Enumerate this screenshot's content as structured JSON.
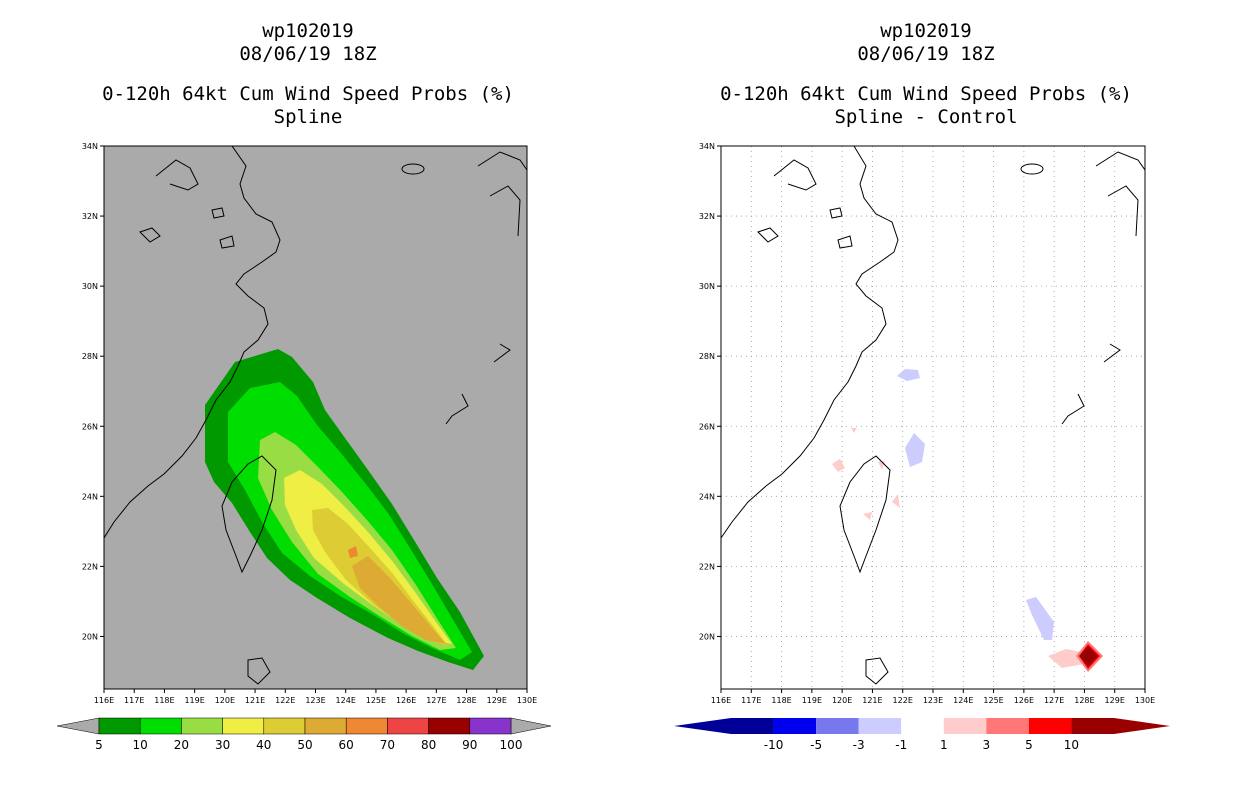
{
  "colors": {
    "land_bg": "#aaaaaa",
    "wind": [
      "#009900",
      "#00dd00",
      "#99dd44",
      "#eeee44",
      "#ddcc33",
      "#ddaa33",
      "#ee8833",
      "#ee4444",
      "#990000",
      "#8833cc"
    ],
    "diff": [
      "#000099",
      "#0000ee",
      "#7777ee",
      "#ccccff",
      "#ffffff",
      "#ffcccc",
      "#ff7777",
      "#ff0000",
      "#990000"
    ],
    "grid": "#999999"
  },
  "charts": [
    {
      "id": "left",
      "title_lines": [
        "wp102019",
        "08/06/19 18Z",
        "0-120h 64kt Cum Wind Speed Probs (%)",
        "Spline"
      ]
    },
    {
      "id": "right",
      "title_lines": [
        "wp102019",
        "08/06/19 18Z",
        "0-120h 64kt Cum Wind Speed Probs (%)",
        "Spline - Control"
      ]
    }
  ],
  "chart_data": [
    {
      "type": "heatmap",
      "title": "wp102019 08/06/19 18Z 0-120h 64kt Cum Wind Speed Probs (%) Spline",
      "x_ticks": [
        "116E",
        "117E",
        "118E",
        "119E",
        "120E",
        "121E",
        "122E",
        "123E",
        "124E",
        "125E",
        "126E",
        "127E",
        "128E",
        "129E",
        "130E"
      ],
      "y_ticks": [
        "20N",
        "22N",
        "24N",
        "26N",
        "28N",
        "30N",
        "32N",
        "34N"
      ],
      "xlim": [
        116,
        130
      ],
      "ylim": [
        18.5,
        34
      ],
      "colorbar_labels": [
        "5",
        "10",
        "20",
        "30",
        "40",
        "50",
        "60",
        "70",
        "80",
        "90",
        "100"
      ],
      "contour_levels": [
        5,
        10,
        20,
        30,
        40,
        50,
        60
      ],
      "max_region_value_pct": 60
    },
    {
      "type": "heatmap",
      "title": "wp102019 08/06/19 18Z 0-120h 64kt Cum Wind Speed Probs (%) Spline - Control",
      "x_ticks": [
        "116E",
        "117E",
        "118E",
        "119E",
        "120E",
        "121E",
        "122E",
        "123E",
        "124E",
        "125E",
        "126E",
        "127E",
        "128E",
        "129E",
        "130E"
      ],
      "y_ticks": [
        "20N",
        "22N",
        "24N",
        "26N",
        "28N",
        "30N",
        "32N",
        "34N"
      ],
      "xlim": [
        116,
        130
      ],
      "ylim": [
        18.5,
        34
      ],
      "colorbar_labels": [
        "-10",
        "-5",
        "-3",
        "-1",
        "1",
        "3",
        "5",
        "10"
      ],
      "features": [
        {
          "lon": 122.4,
          "lat": 27.5,
          "value": -3
        },
        {
          "lon": 122.5,
          "lat": 25.3,
          "value": -3
        },
        {
          "lon": 127.0,
          "lat": 20.5,
          "value": -3
        },
        {
          "lon": 120.0,
          "lat": 24.9,
          "value": 3
        },
        {
          "lon": 121.4,
          "lat": 24.9,
          "value": 3
        },
        {
          "lon": 121.8,
          "lat": 23.9,
          "value": 3
        },
        {
          "lon": 127.9,
          "lat": 19.6,
          "value": 3
        },
        {
          "lon": 128.6,
          "lat": 19.5,
          "value": 10
        }
      ]
    }
  ]
}
